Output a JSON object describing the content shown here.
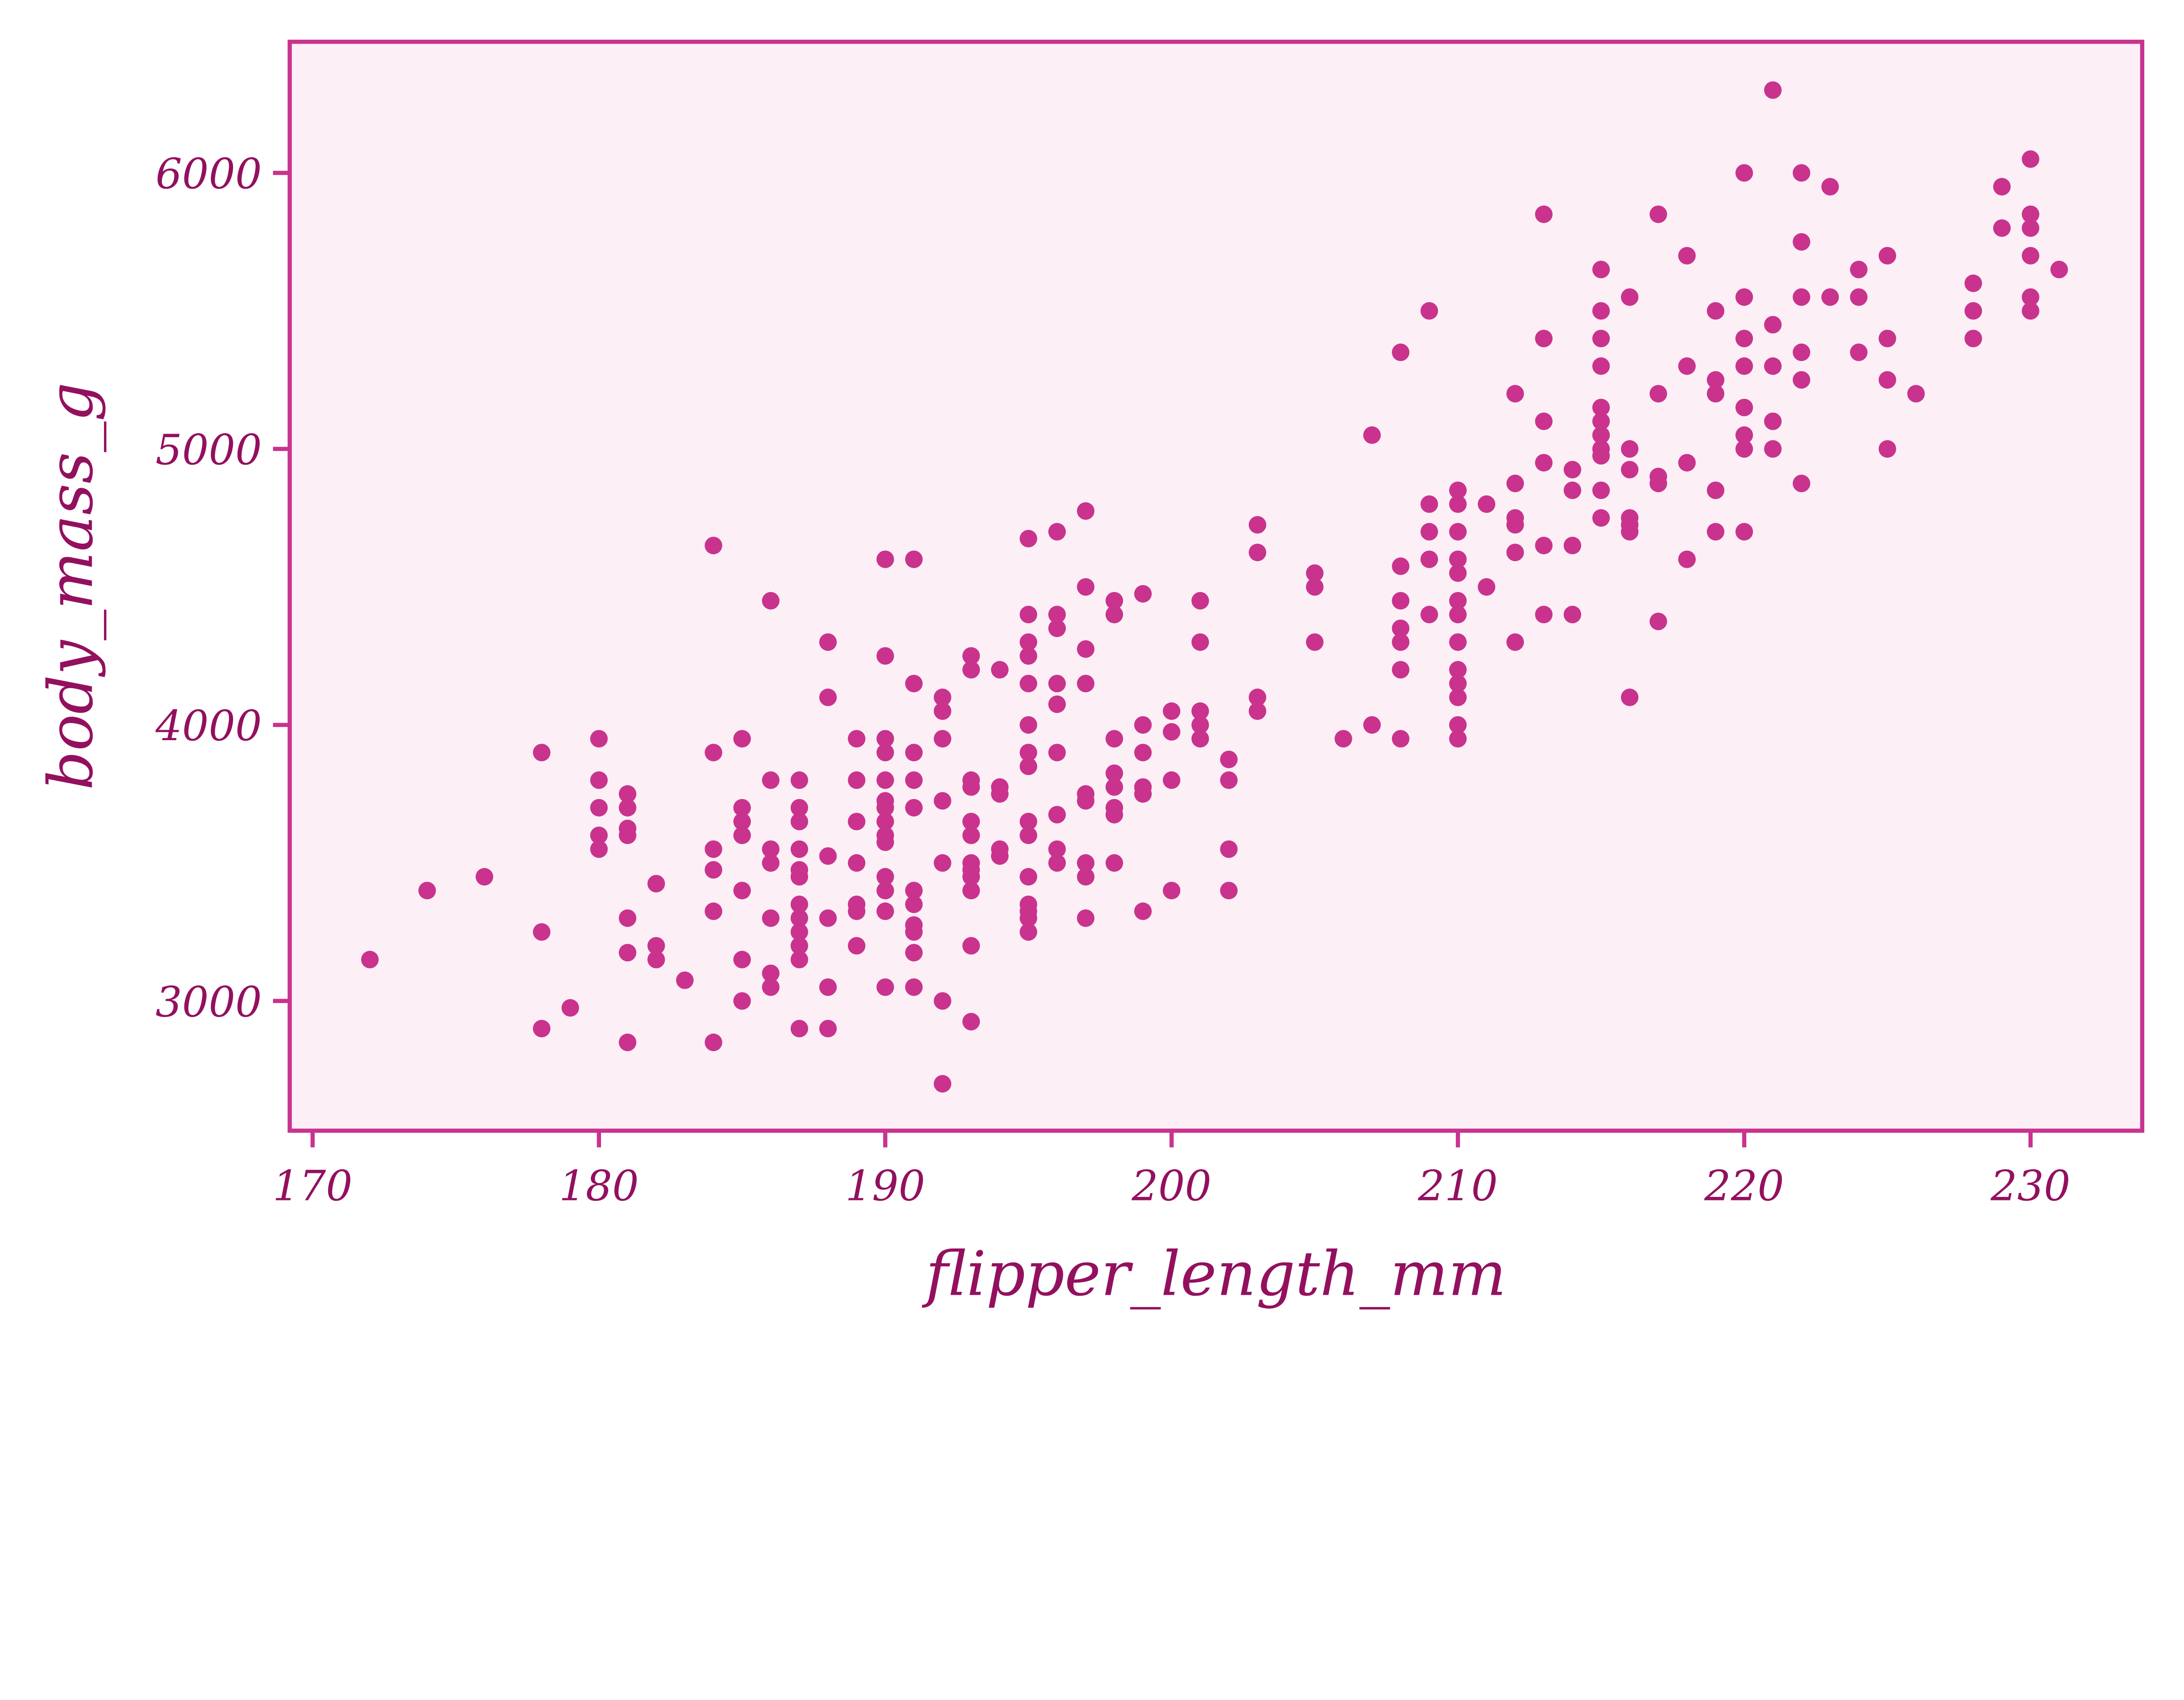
{
  "chart_data": {
    "type": "scatter",
    "title": "",
    "xlabel": "flipper_length_mm",
    "ylabel": "body_mass_g",
    "xlim": [
      169.2,
      233.9
    ],
    "ylim": [
      2530,
      6475
    ],
    "xticks": [
      170,
      180,
      190,
      200,
      210,
      220,
      230
    ],
    "yticks": [
      3000,
      4000,
      5000,
      6000
    ],
    "xtick_labels": [
      "170",
      "180",
      "190",
      "200",
      "210",
      "220",
      "230"
    ],
    "ytick_labels": [
      "3000",
      "4000",
      "5000",
      "6000"
    ],
    "grid": false,
    "legend": "none",
    "colors": {
      "marker": "#C9338E",
      "background": "#FCF0F6",
      "frame": "#C9338E",
      "text": "#93105F"
    },
    "columns": [
      [
        172,
        [
          3150
        ]
      ],
      [
        174,
        [
          3400
        ]
      ],
      [
        176,
        [
          3450
        ]
      ],
      [
        178,
        [
          3900,
          3250,
          2900
        ]
      ],
      [
        179,
        [
          2975
        ]
      ],
      [
        180,
        [
          3950,
          3800,
          3700,
          3600,
          3550
        ]
      ],
      [
        181,
        [
          3750,
          3700,
          3625,
          3600,
          3300,
          3175,
          2850
        ]
      ],
      [
        182,
        [
          3425,
          3200,
          3150
        ]
      ],
      [
        183,
        [
          3075
        ]
      ],
      [
        184,
        [
          4650,
          3900,
          3550,
          3475,
          3325,
          2850
        ]
      ],
      [
        185,
        [
          3950,
          3700,
          3650,
          3600,
          3400,
          3150,
          3000
        ]
      ],
      [
        186,
        [
          4450,
          3800,
          3550,
          3500,
          3300,
          3100,
          3050
        ]
      ],
      [
        187,
        [
          3800,
          3700,
          3650,
          3550,
          3475,
          3450,
          3350,
          3300,
          3250,
          3200,
          3150,
          2900
        ]
      ],
      [
        188,
        [
          4300,
          4100,
          3525,
          3300,
          3050,
          2900
        ]
      ],
      [
        189,
        [
          3950,
          3800,
          3650,
          3500,
          3350,
          3325,
          3200
        ]
      ],
      [
        190,
        [
          4600,
          4250,
          3950,
          3900,
          3800,
          3725,
          3700,
          3650,
          3600,
          3575,
          3450,
          3400,
          3325,
          3050
        ]
      ],
      [
        191,
        [
          4600,
          4150,
          3900,
          3800,
          3700,
          3400,
          3350,
          3275,
          3250,
          3175,
          3050
        ]
      ],
      [
        192,
        [
          4100,
          4050,
          3950,
          3725,
          3500,
          3000,
          2700
        ]
      ],
      [
        193,
        [
          4250,
          4200,
          3800,
          3775,
          3650,
          3600,
          3500,
          3475,
          3450,
          3400,
          3200,
          2925
        ]
      ],
      [
        194,
        [
          4200,
          3775,
          3750,
          3550,
          3525
        ]
      ],
      [
        195,
        [
          4675,
          4400,
          4300,
          4250,
          4150,
          4000,
          3900,
          3850,
          3650,
          3600,
          3450,
          3350,
          3325,
          3300,
          3250
        ]
      ],
      [
        196,
        [
          4700,
          4400,
          4350,
          4150,
          4075,
          3900,
          3675,
          3550,
          3500
        ]
      ],
      [
        197,
        [
          4775,
          4500,
          4275,
          4150,
          3750,
          3725,
          3500,
          3450,
          3300
        ]
      ],
      [
        198,
        [
          4450,
          4400,
          3950,
          3825,
          3775,
          3700,
          3675,
          3500
        ]
      ],
      [
        199,
        [
          4475,
          4000,
          3900,
          3775,
          3750,
          3325
        ]
      ],
      [
        200,
        [
          4050,
          3975,
          3800,
          3400
        ]
      ],
      [
        201,
        [
          4450,
          4300,
          4050,
          4000,
          3950
        ]
      ],
      [
        202,
        [
          3875,
          3800,
          3550,
          3400
        ]
      ],
      [
        203,
        [
          4725,
          4625,
          4100,
          4050
        ]
      ],
      [
        205,
        [
          4550,
          4500,
          4300
        ]
      ],
      [
        206,
        [
          3950
        ]
      ],
      [
        207,
        [
          5050,
          4000
        ]
      ],
      [
        208,
        [
          5350,
          4575,
          4450,
          4350,
          4300,
          4200,
          3950
        ]
      ],
      [
        209,
        [
          5500,
          4800,
          4700,
          4600,
          4400
        ]
      ],
      [
        210,
        [
          4850,
          4800,
          4700,
          4600,
          4550,
          4450,
          4400,
          4300,
          4200,
          4150,
          4100,
          4000,
          3950
        ]
      ],
      [
        211,
        [
          4800,
          4500
        ]
      ],
      [
        212,
        [
          5200,
          4875,
          4750,
          4725,
          4625,
          4300
        ]
      ],
      [
        213,
        [
          5850,
          5400,
          5100,
          4950,
          4650,
          4400
        ]
      ],
      [
        214,
        [
          4925,
          4850,
          4650,
          4400
        ]
      ],
      [
        215,
        [
          5650,
          5500,
          5400,
          5300,
          5150,
          5100,
          5050,
          5000,
          4975,
          4850,
          4750
        ]
      ],
      [
        216,
        [
          5550,
          5000,
          4925,
          4750,
          4725,
          4700,
          4100
        ]
      ],
      [
        217,
        [
          5850,
          5200,
          4900,
          4875,
          4375
        ]
      ],
      [
        218,
        [
          5700,
          5300,
          4950,
          4600
        ]
      ],
      [
        219,
        [
          5500,
          5250,
          5200,
          4850,
          4700
        ]
      ],
      [
        220,
        [
          6000,
          5550,
          5400,
          5300,
          5150,
          5050,
          5000,
          4700
        ]
      ],
      [
        221,
        [
          6300,
          5450,
          5300,
          5100,
          5000
        ]
      ],
      [
        222,
        [
          6000,
          5750,
          5550,
          5350,
          5250,
          4875
        ]
      ],
      [
        223,
        [
          5950,
          5550
        ]
      ],
      [
        224,
        [
          5650,
          5550,
          5350
        ]
      ],
      [
        225,
        [
          5700,
          5400,
          5250,
          5000
        ]
      ],
      [
        226,
        [
          5200
        ]
      ],
      [
        228,
        [
          5600,
          5500,
          5400
        ]
      ],
      [
        229,
        [
          5950,
          5800
        ]
      ],
      [
        230,
        [
          6050,
          5850,
          5800,
          5700,
          5550,
          5500
        ]
      ],
      [
        231,
        [
          5650
        ]
      ]
    ]
  }
}
